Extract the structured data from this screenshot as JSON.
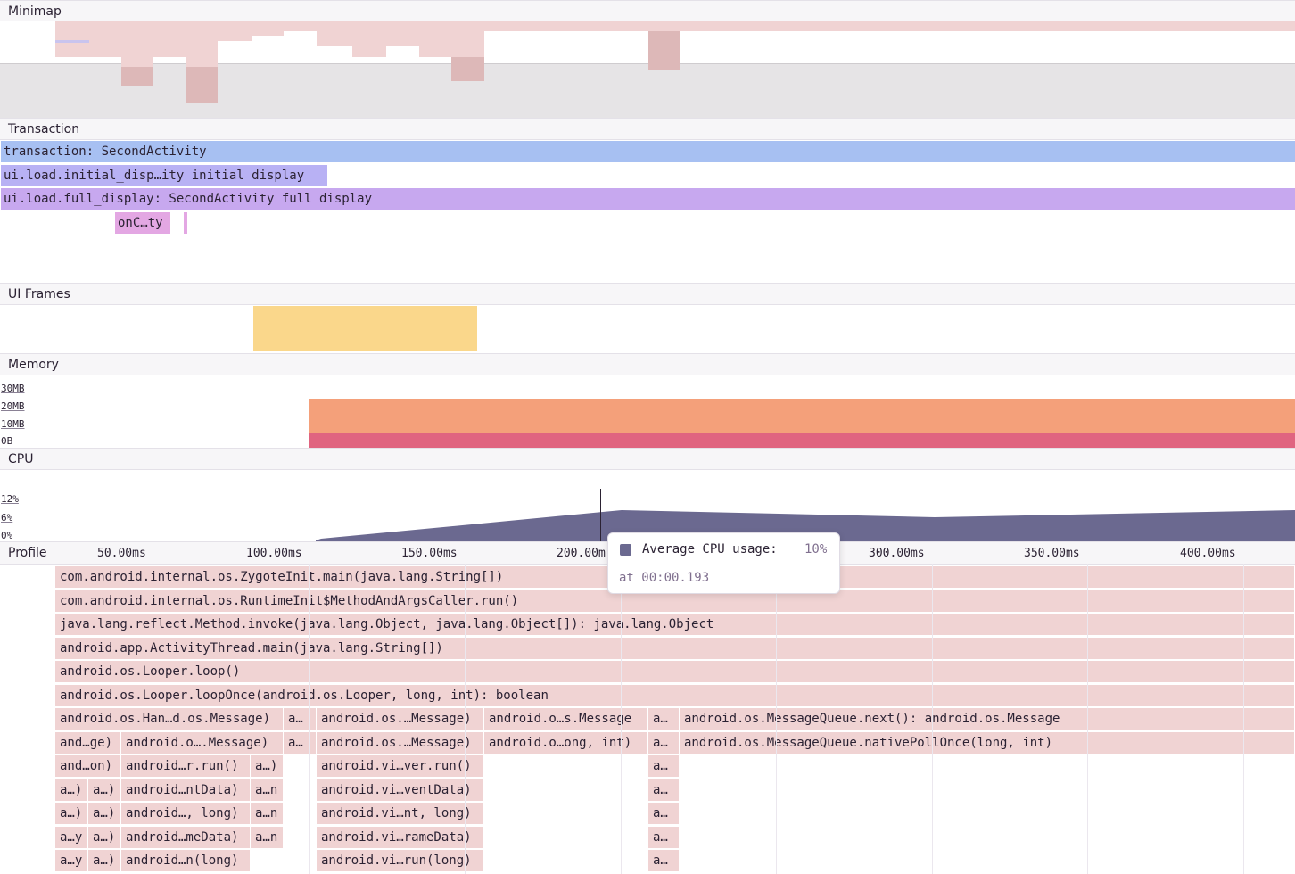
{
  "sections": {
    "minimap": "Minimap",
    "transaction": "Transaction",
    "ui_frames": "UI Frames",
    "memory": "Memory",
    "cpu": "CPU",
    "profile": "Profile"
  },
  "spans": {
    "transaction": "transaction: SecondActivity",
    "initial_display": "ui.load.initial_disp…ity initial display",
    "full_display": "ui.load.full_display: SecondActivity full display",
    "on_create": "onC…ty"
  },
  "memory_axis": [
    "30MB",
    "20MB",
    "10MB",
    "0B"
  ],
  "cpu_axis": [
    "12%",
    "6%",
    "0%"
  ],
  "time_ticks": [
    "50.00ms",
    "100.00ms",
    "150.00ms",
    "200.00m",
    "300.00ms",
    "350.00ms",
    "400.00ms"
  ],
  "tooltip": {
    "label": "Average CPU usage:",
    "value": "10%",
    "time": "at 00:00.193"
  },
  "colors": {
    "transaction": "#a7c0f2",
    "initial_display": "#b8b1f4",
    "full_display": "#c7a8ef",
    "on_create": "#e3a7e3",
    "ui_frame": "#fad78b",
    "memory_top": "#f4a07a",
    "memory_bottom": "#e06480",
    "cpu": "#6b6990",
    "flame": "#f0d3d3"
  },
  "flamegraph": {
    "rows": [
      [
        "com.android.internal.os.ZygoteInit.main(java.lang.String[])"
      ],
      [
        "com.android.internal.os.RuntimeInit$MethodAndArgsCaller.run()"
      ],
      [
        "java.lang.reflect.Method.invoke(java.lang.Object, java.lang.Object[]): java.lang.Object"
      ],
      [
        "android.app.ActivityThread.main(java.lang.String[])"
      ],
      [
        "android.os.Looper.loop()"
      ],
      [
        "android.os.Looper.loopOnce(android.os.Looper, long, int): boolean"
      ],
      [
        "android.os.Han…d.os.Message)",
        "a…",
        "android.os.…Message)",
        "android.o…s.Message",
        "a…",
        "android.os.MessageQueue.next(): android.os.Message"
      ],
      [
        "and…ge)",
        "android.o….Message)",
        "a…",
        "android.os.…Message)",
        "android.o…ong, int)",
        "a…",
        "android.os.MessageQueue.nativePollOnce(long, int)"
      ],
      [
        "and…on)",
        "android…r.run()",
        "a…)",
        "android.vi…ver.run()",
        "a…"
      ],
      [
        "a…)",
        "a…)",
        "android…ntData)",
        "a…n",
        "android.vi…ventData)",
        "a…"
      ],
      [
        "a…)",
        "a…)",
        "android…, long)",
        "a…n",
        "android.vi…nt, long)",
        "a…"
      ],
      [
        "a…y",
        "a…)",
        "android…meData)",
        "a…n",
        "android.vi…rameData)",
        "a…"
      ],
      [
        "a…y",
        "a…)",
        "android…n(long)",
        "android.vi…run(long)",
        "a…"
      ]
    ]
  }
}
